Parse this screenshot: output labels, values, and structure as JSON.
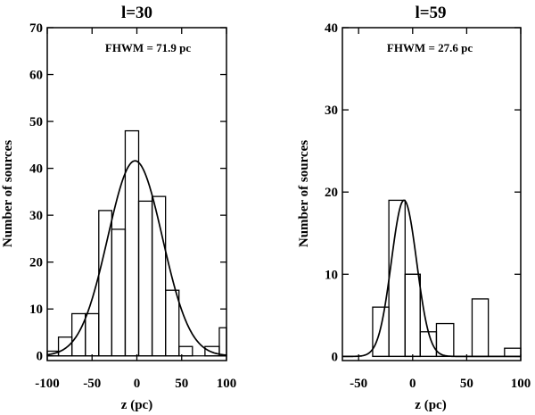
{
  "chart_data": [
    {
      "type": "bar",
      "title": "l=30",
      "annotation": "FHWM = 71.9 pc",
      "xlabel": "z (pc)",
      "ylabel": "Number of sources",
      "xlim": [
        -100,
        100
      ],
      "ylim": [
        -1,
        70
      ],
      "xticks": [
        -100,
        -50,
        0,
        50,
        100
      ],
      "xtick_labels": [
        "-100",
        "-50",
        "0",
        "50",
        "100"
      ],
      "yticks": [
        0,
        10,
        20,
        30,
        40,
        50,
        60,
        70
      ],
      "ytick_labels": [
        "0",
        "10",
        "20",
        "30",
        "40",
        "50",
        "60",
        "70"
      ],
      "bin_edges": [
        -100,
        -87.5,
        -72.5,
        -57.5,
        -42.5,
        -28,
        -13,
        2,
        17,
        32,
        47,
        62,
        76,
        92,
        100
      ],
      "counts": [
        1,
        4,
        9,
        9,
        31,
        27,
        48,
        33,
        34,
        14,
        2,
        0,
        2,
        6
      ],
      "gaussian_fit": {
        "amplitude": 41.6,
        "mean": -2,
        "fwhm": 71.9
      }
    },
    {
      "type": "bar",
      "title": "l=59",
      "annotation": "FHWM = 27.6 pc",
      "xlabel": "z (pc)",
      "ylabel": "Number of sources",
      "xlim": [
        -65,
        100
      ],
      "ylim": [
        -0.5,
        40
      ],
      "xticks": [
        -50,
        0,
        50,
        100
      ],
      "xtick_labels": [
        "-50",
        "0",
        "50",
        "100"
      ],
      "yticks": [
        0,
        10,
        20,
        30,
        40
      ],
      "ytick_labels": [
        "0",
        "10",
        "20",
        "30",
        "40"
      ],
      "bin_edges": [
        -37,
        -22,
        -7,
        7,
        22,
        38,
        55,
        70,
        85,
        100
      ],
      "counts": [
        6,
        19,
        10,
        3,
        4,
        0,
        7,
        0,
        1
      ],
      "extra_bins": [
        {
          "edges": [
            -7,
            7
          ],
          "count": 10
        }
      ],
      "gaussian_fit": {
        "amplitude": 19,
        "mean": -8,
        "fwhm": 27.6
      }
    }
  ]
}
